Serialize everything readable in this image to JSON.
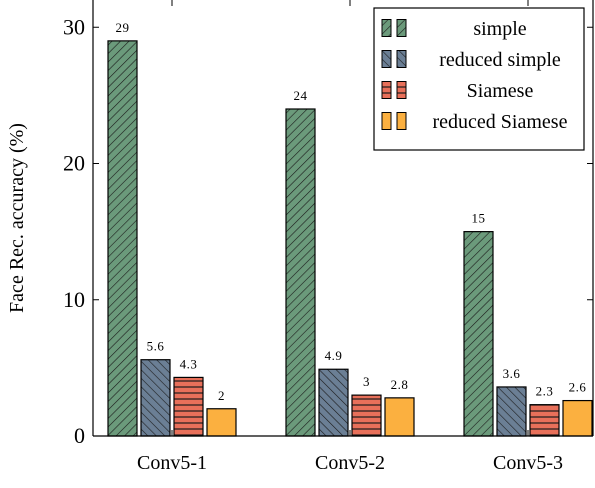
{
  "chart_data": {
    "type": "bar",
    "title": "",
    "xlabel": "",
    "ylabel": "Face Rec. accuracy (%)",
    "categories": [
      "Conv5-1",
      "Conv5-2",
      "Conv5-3"
    ],
    "ylim": [
      0,
      32
    ],
    "yticks": [
      0,
      10,
      20,
      30
    ],
    "grid": false,
    "legend_position": "top-right",
    "series": [
      {
        "name": "simple",
        "values": [
          29,
          24,
          15
        ],
        "labels": [
          "29",
          "24",
          "15"
        ],
        "color": "#6b9a7b",
        "pattern": "diagonal-hatch"
      },
      {
        "name": "reduced simple",
        "values": [
          5.6,
          4.9,
          3.6
        ],
        "labels": [
          "5.6",
          "4.9",
          "3.6"
        ],
        "color": "#6b7f95",
        "pattern": "diagonal-hatch-reverse"
      },
      {
        "name": "Siamese",
        "values": [
          4.3,
          3,
          2.3
        ],
        "labels": [
          "4.3",
          "3",
          "2.3"
        ],
        "color": "#e8705a",
        "pattern": "horizontal-lines"
      },
      {
        "name": "reduced Siamese",
        "values": [
          2,
          2.8,
          2.6
        ],
        "labels": [
          "2",
          "2.8",
          "2.6"
        ],
        "color": "#fbb040",
        "pattern": "solid"
      }
    ]
  }
}
